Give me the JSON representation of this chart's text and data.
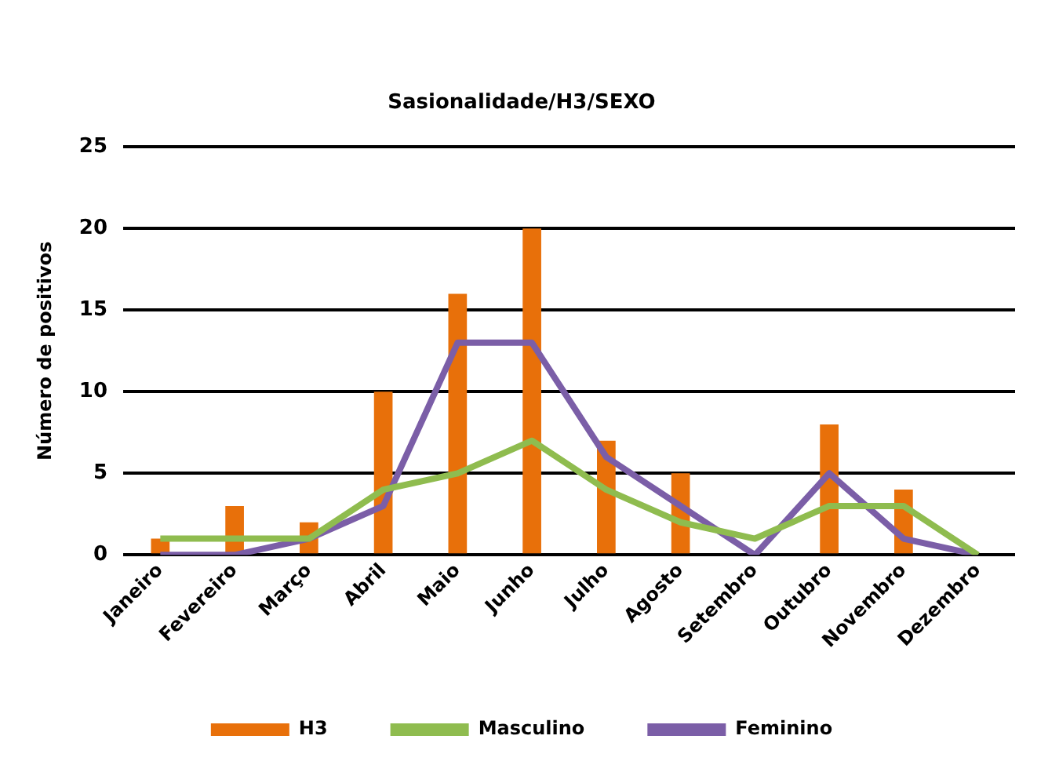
{
  "chart_data": {
    "type": "bar",
    "title": "Sasionalidade/H3/SEXO",
    "ylabel": "Número de positivos",
    "categories": [
      "Janeiro",
      "Fevereiro",
      "Março",
      "Abril",
      "Maio",
      "Junho",
      "Julho",
      "Agosto",
      "Setembro",
      "Outubro",
      "Novembro",
      "Dezembro"
    ],
    "series": [
      {
        "name": "H3",
        "color": "#e8700a",
        "values": [
          1,
          3,
          2,
          10,
          16,
          20,
          7,
          5,
          0,
          8,
          4,
          0
        ]
      },
      {
        "name": "Masculino",
        "type": "line",
        "color": "#8fbc4f",
        "values": [
          1,
          1,
          1,
          4,
          5,
          7,
          4,
          2,
          1,
          3,
          3,
          0
        ]
      },
      {
        "name": "Feminino",
        "type": "line",
        "color": "#7b5ea7",
        "values": [
          0,
          0,
          1,
          3,
          13,
          13,
          6,
          3,
          0,
          5,
          1,
          0
        ]
      }
    ],
    "ylim": [
      0,
      25
    ],
    "yticks": [
      0,
      5,
      10,
      15,
      20,
      25
    ],
    "grid": "y",
    "legend": "bottom",
    "marker": "none",
    "line_style": "solid"
  }
}
